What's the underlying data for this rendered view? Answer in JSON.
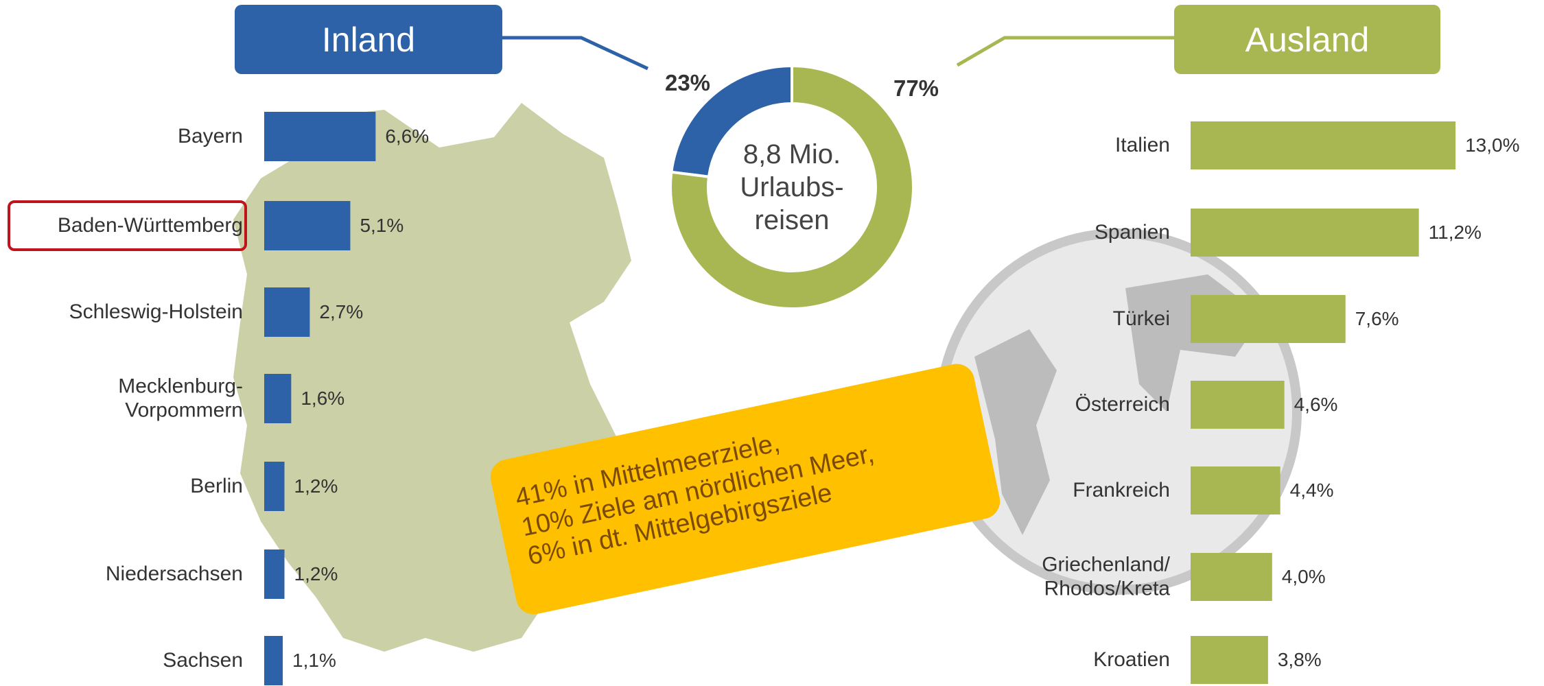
{
  "chart_data": [
    {
      "type": "bar",
      "title": "Inland",
      "color": "#2e62a8",
      "categories": [
        "Bayern",
        "Baden-Württemberg",
        "Schleswig-Holstein",
        "Mecklenburg-\nVorpommern",
        "Berlin",
        "Niedersachsen",
        "Sachsen"
      ],
      "values": [
        6.6,
        5.1,
        2.7,
        1.6,
        1.2,
        1.2,
        1.1
      ],
      "value_labels": [
        "6,6%",
        "5,1%",
        "2,7%",
        "1,6%",
        "1,2%",
        "1,2%",
        "1,1%"
      ],
      "highlight_index": 1,
      "highlight_color": "#c0141c"
    },
    {
      "type": "pie",
      "center_text": "8,8 Mio.\nUrlaubs-\nreisen",
      "categories": [
        "Inland",
        "Ausland"
      ],
      "values": [
        23,
        77
      ],
      "value_labels": [
        "23%",
        "77%"
      ],
      "colors": [
        "#2e62a8",
        "#a9b752"
      ]
    },
    {
      "type": "bar",
      "title": "Ausland",
      "color": "#a9b752",
      "categories": [
        "Italien",
        "Spanien",
        "Türkei",
        "Österreich",
        "Frankreich",
        "Griechenland/\nRhodos/Kreta",
        "Kroatien"
      ],
      "values": [
        13.0,
        11.2,
        7.6,
        4.6,
        4.4,
        4.0,
        3.8
      ],
      "value_labels": [
        "13,0%",
        "11,2%",
        "7,6%",
        "4,6%",
        "4,4%",
        "4,0%",
        "3,8%"
      ]
    }
  ],
  "callout": {
    "text": "41% in Mittelmeerziele,\n10% Ziele am nördlichen Meer,\n6% in dt. Mittelgebirgsziele",
    "color": "#ffc000"
  }
}
